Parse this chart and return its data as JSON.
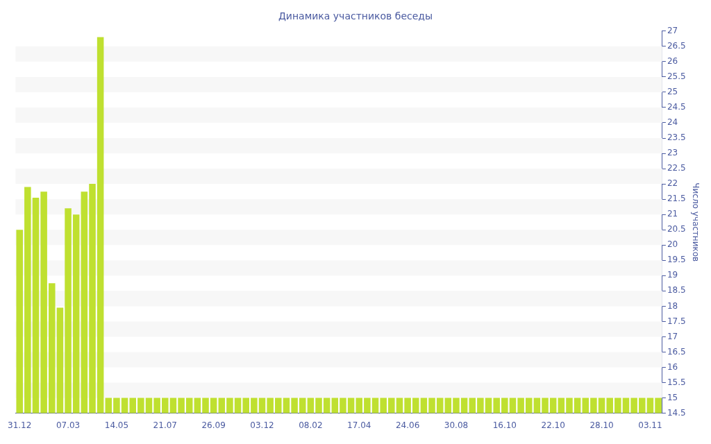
{
  "chart_data": {
    "type": "bar",
    "title": "Динамика участников беседы",
    "ylabel": "Число участников",
    "categories": [
      "31.12",
      null,
      null,
      null,
      null,
      null,
      "07.03",
      null,
      null,
      null,
      null,
      null,
      "14.05",
      null,
      null,
      null,
      null,
      null,
      "21.07",
      null,
      null,
      null,
      null,
      null,
      "26.09",
      null,
      null,
      null,
      null,
      null,
      "03.12",
      null,
      null,
      null,
      null,
      null,
      "08.02",
      null,
      null,
      null,
      null,
      null,
      "17.04",
      null,
      null,
      null,
      null,
      null,
      "24.06",
      null,
      null,
      null,
      null,
      null,
      "30.08",
      null,
      null,
      null,
      null,
      null,
      "16.10",
      null,
      null,
      null,
      null,
      null,
      "22.10",
      null,
      null,
      null,
      null,
      null,
      "28.10",
      null,
      null,
      null,
      null,
      null,
      "03.11",
      null
    ],
    "values": [
      20.5,
      21.9,
      21.55,
      21.75,
      18.75,
      17.95,
      21.2,
      21.0,
      21.75,
      22.0,
      26.8,
      15,
      15,
      15,
      15,
      15,
      15,
      15,
      15,
      15,
      15,
      15,
      15,
      15,
      15,
      15,
      15,
      15,
      15,
      15,
      15,
      15,
      15,
      15,
      15,
      15,
      15,
      15,
      15,
      15,
      15,
      15,
      15,
      15,
      15,
      15,
      15,
      15,
      15,
      15,
      15,
      15,
      15,
      15,
      15,
      15,
      15,
      15,
      15,
      15,
      15,
      15,
      15,
      15,
      15,
      15,
      15,
      15,
      15,
      15,
      15,
      15,
      15,
      15,
      15,
      15,
      15,
      15,
      15,
      15
    ],
    "color": "#bfe030",
    "ylim": [
      14.5,
      27
    ],
    "yticks": [
      14.5,
      15,
      15.5,
      16,
      16.5,
      17,
      17.5,
      18,
      18.5,
      19,
      19.5,
      20,
      20.5,
      21,
      21.5,
      22,
      22.5,
      23,
      23.5,
      24,
      24.5,
      25,
      25.5,
      26,
      26.5,
      27
    ],
    "bands": [
      {
        "axis": "y",
        "from": 15,
        "to": 15.5,
        "color": "#f7f7f7"
      },
      {
        "axis": "y",
        "from": 16,
        "to": 16.5,
        "color": "#f7f7f7"
      },
      {
        "axis": "y",
        "from": 17,
        "to": 17.5,
        "color": "#f7f7f7"
      },
      {
        "axis": "y",
        "from": 18,
        "to": 18.5,
        "color": "#f7f7f7"
      },
      {
        "axis": "y",
        "from": 19,
        "to": 19.5,
        "color": "#f7f7f7"
      },
      {
        "axis": "y",
        "from": 20,
        "to": 20.5,
        "color": "#f7f7f7"
      },
      {
        "axis": "y",
        "from": 21,
        "to": 21.5,
        "color": "#f7f7f7"
      },
      {
        "axis": "y",
        "from": 22,
        "to": 22.5,
        "color": "#f7f7f7"
      },
      {
        "axis": "y",
        "from": 23,
        "to": 23.5,
        "color": "#f7f7f7"
      },
      {
        "axis": "y",
        "from": 24,
        "to": 24.5,
        "color": "#f7f7f7"
      },
      {
        "axis": "y",
        "from": 25,
        "to": 25.5,
        "color": "#f7f7f7"
      },
      {
        "axis": "y",
        "from": 26,
        "to": 26.5,
        "color": "#f7f7f7"
      }
    ],
    "legend": false
  }
}
